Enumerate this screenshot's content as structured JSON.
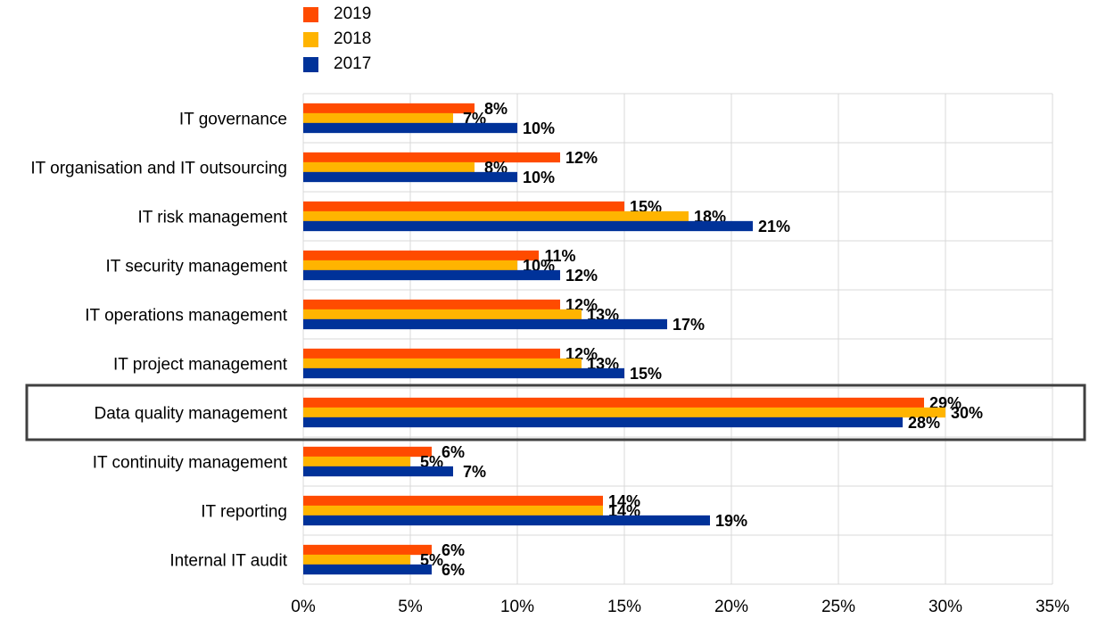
{
  "chart_data": {
    "type": "bar",
    "orientation": "horizontal",
    "categories": [
      "IT governance",
      "IT organisation and IT outsourcing",
      "IT risk management",
      "IT security management",
      "IT operations management",
      "IT project management",
      "Data quality management",
      "IT continuity management",
      "IT reporting",
      "Internal IT audit"
    ],
    "series": [
      {
        "name": "2019",
        "color": "#FF4B00",
        "values": [
          8,
          12,
          15,
          11,
          12,
          12,
          29,
          6,
          14,
          6
        ],
        "labels": [
          "8%",
          "12%",
          "15%",
          "11%",
          "12%",
          "12%",
          "29%",
          "6%",
          "14%",
          "6%"
        ]
      },
      {
        "name": "2018",
        "color": "#FFB400",
        "values": [
          7,
          8,
          18,
          10,
          13,
          13,
          30,
          5,
          14,
          5
        ],
        "labels": [
          "7%",
          "8%",
          "18%",
          "10%",
          "13%",
          "13%",
          "30%",
          "5%",
          "14%",
          "5%"
        ]
      },
      {
        "name": "2017",
        "color": "#003299",
        "values": [
          10,
          10,
          21,
          12,
          17,
          15,
          28,
          7,
          19,
          6
        ],
        "labels": [
          "10%",
          "10%",
          "21%",
          "12%",
          "17%",
          "15%",
          "28%",
          "7%",
          "19%",
          "6%"
        ]
      }
    ],
    "x_ticks": [
      "0%",
      "5%",
      "10%",
      "15%",
      "20%",
      "25%",
      "30%",
      "35%"
    ],
    "xlim": [
      0,
      35
    ],
    "grid": true,
    "legend_position": "top-left",
    "highlighted_category": "Data quality management"
  }
}
